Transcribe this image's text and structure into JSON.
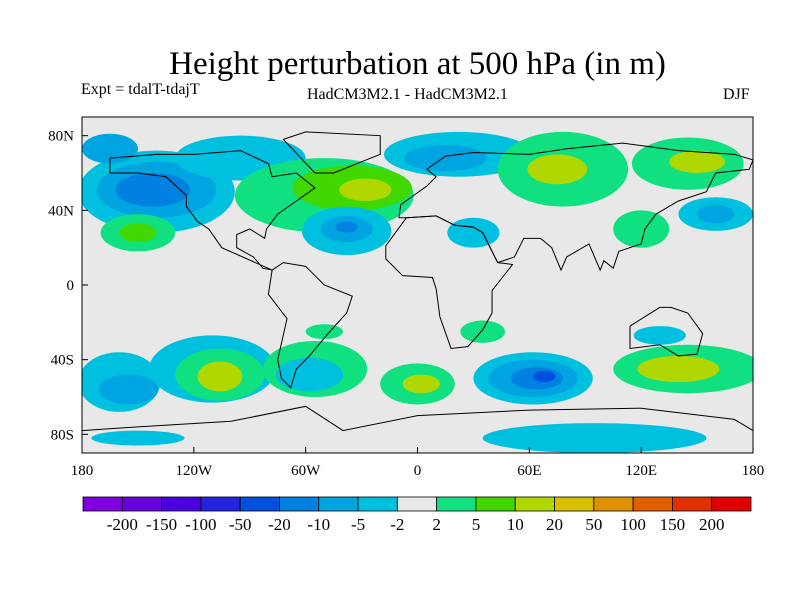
{
  "title": "Height perturbation at 500 hPa (in m)",
  "expt": "Expt = tdalT-tdajT",
  "models": "HadCM3M2.1 - HadCM3M2.1",
  "season": "DJF",
  "chart_data": {
    "type": "heatmap",
    "title": "Height perturbation at 500 hPa (in m)",
    "lon_range": [
      -180,
      180
    ],
    "lat_range": [
      -90,
      90
    ],
    "x_ticks": [
      {
        "v": -180,
        "label": "180"
      },
      {
        "v": -120,
        "label": "120W"
      },
      {
        "v": -60,
        "label": "60W"
      },
      {
        "v": 0,
        "label": "0"
      },
      {
        "v": 60,
        "label": "60E"
      },
      {
        "v": 120,
        "label": "120E"
      },
      {
        "v": 180,
        "label": "180"
      }
    ],
    "y_ticks": [
      {
        "v": 80,
        "label": "80N"
      },
      {
        "v": 40,
        "label": "40N"
      },
      {
        "v": 0,
        "label": "0"
      },
      {
        "v": -40,
        "label": "40S"
      },
      {
        "v": -80,
        "label": "80S"
      }
    ],
    "colorbar": {
      "labels": [
        "-200",
        "-150",
        "-100",
        "-50",
        "-20",
        "-10",
        "-5",
        "-2",
        "2",
        "5",
        "10",
        "20",
        "50",
        "100",
        "150",
        "200"
      ],
      "colors": [
        "#8000e0",
        "#6600dc",
        "#4c00e0",
        "#2424e0",
        "#0050e0",
        "#0080e0",
        "#00a4e0",
        "#00c0e0",
        "#e8e8e8",
        "#10e080",
        "#40d800",
        "#b0d800",
        "#d8c000",
        "#e09000",
        "#e06000",
        "#e03000",
        "#e00000"
      ]
    },
    "anomaly_regions": [
      {
        "lon": -140,
        "lat": 50,
        "rlon": 42,
        "rlat": 22,
        "bin": 7
      },
      {
        "lon": -140,
        "lat": 51,
        "rlon": 32,
        "rlat": 15,
        "bin": 6
      },
      {
        "lon": -142,
        "lat": 51,
        "rlon": 20,
        "rlat": 9,
        "bin": 5
      },
      {
        "lon": -165,
        "lat": 73,
        "rlon": 15,
        "rlat": 8,
        "bin": 6
      },
      {
        "lon": -95,
        "lat": 68,
        "rlon": 35,
        "rlat": 12,
        "bin": 7
      },
      {
        "lon": -50,
        "lat": 48,
        "rlon": 48,
        "rlat": 20,
        "bin": 9
      },
      {
        "lon": -35,
        "lat": 52,
        "rlon": 32,
        "rlat": 12,
        "bin": 10
      },
      {
        "lon": -28,
        "lat": 51,
        "rlon": 14,
        "rlat": 6,
        "bin": 11
      },
      {
        "lon": -38,
        "lat": 29,
        "rlon": 24,
        "rlat": 13,
        "bin": 7
      },
      {
        "lon": -38,
        "lat": 30,
        "rlon": 14,
        "rlat": 7,
        "bin": 6
      },
      {
        "lon": -38,
        "lat": 31,
        "rlon": 6,
        "rlat": 3,
        "bin": 5
      },
      {
        "lon": 22,
        "lat": 70,
        "rlon": 40,
        "rlat": 12,
        "bin": 7
      },
      {
        "lon": 15,
        "lat": 68,
        "rlon": 22,
        "rlat": 7,
        "bin": 6
      },
      {
        "lon": 78,
        "lat": 62,
        "rlon": 35,
        "rlat": 20,
        "bin": 9
      },
      {
        "lon": 75,
        "lat": 62,
        "rlon": 16,
        "rlat": 8,
        "bin": 11
      },
      {
        "lon": 145,
        "lat": 65,
        "rlon": 30,
        "rlat": 14,
        "bin": 9
      },
      {
        "lon": 150,
        "lat": 66,
        "rlon": 15,
        "rlat": 6,
        "bin": 11
      },
      {
        "lon": 160,
        "lat": 38,
        "rlon": 20,
        "rlat": 9,
        "bin": 7
      },
      {
        "lon": 160,
        "lat": 38,
        "rlon": 10,
        "rlat": 5,
        "bin": 6
      },
      {
        "lon": -150,
        "lat": 28,
        "rlon": 20,
        "rlat": 10,
        "bin": 9
      },
      {
        "lon": -150,
        "lat": 28,
        "rlon": 10,
        "rlat": 5,
        "bin": 10
      },
      {
        "lon": 120,
        "lat": 30,
        "rlon": 15,
        "rlat": 10,
        "bin": 9
      },
      {
        "lon": 30,
        "lat": 28,
        "rlon": 14,
        "rlat": 8,
        "bin": 7
      },
      {
        "lon": -110,
        "lat": -45,
        "rlon": 34,
        "rlat": 18,
        "bin": 7
      },
      {
        "lon": -106,
        "lat": -48,
        "rlon": 24,
        "rlat": 14,
        "bin": 9
      },
      {
        "lon": -106,
        "lat": -49,
        "rlon": 12,
        "rlat": 8,
        "bin": 11
      },
      {
        "lon": -160,
        "lat": -52,
        "rlon": 22,
        "rlat": 16,
        "bin": 7
      },
      {
        "lon": -155,
        "lat": -56,
        "rlon": 16,
        "rlat": 8,
        "bin": 6
      },
      {
        "lon": -55,
        "lat": -45,
        "rlon": 28,
        "rlat": 15,
        "bin": 9
      },
      {
        "lon": -58,
        "lat": -48,
        "rlon": 18,
        "rlat": 9,
        "bin": 7
      },
      {
        "lon": 0,
        "lat": -53,
        "rlon": 20,
        "rlat": 11,
        "bin": 9
      },
      {
        "lon": 2,
        "lat": -53,
        "rlon": 10,
        "rlat": 5,
        "bin": 11
      },
      {
        "lon": 62,
        "lat": -50,
        "rlon": 32,
        "rlat": 14,
        "bin": 7
      },
      {
        "lon": 62,
        "lat": -50,
        "rlon": 24,
        "rlat": 10,
        "bin": 6
      },
      {
        "lon": 64,
        "lat": -50,
        "rlon": 14,
        "rlat": 6,
        "bin": 5
      },
      {
        "lon": 68,
        "lat": -49,
        "rlon": 6,
        "rlat": 3,
        "bin": 4
      },
      {
        "lon": 145,
        "lat": -45,
        "rlon": 40,
        "rlat": 13,
        "bin": 9
      },
      {
        "lon": 140,
        "lat": -45,
        "rlon": 22,
        "rlat": 7,
        "bin": 11
      },
      {
        "lon": 130,
        "lat": -27,
        "rlon": 14,
        "rlat": 5,
        "bin": 7
      },
      {
        "lon": 95,
        "lat": -82,
        "rlon": 60,
        "rlat": 8,
        "bin": 7
      },
      {
        "lon": -150,
        "lat": -82,
        "rlon": 25,
        "rlat": 4,
        "bin": 7
      },
      {
        "lon": 35,
        "lat": -25,
        "rlon": 12,
        "rlat": 6,
        "bin": 9
      },
      {
        "lon": -50,
        "lat": -25,
        "rlon": 10,
        "rlat": 4,
        "bin": 9
      }
    ],
    "coastlines": [
      [
        [
          -165,
          68
        ],
        [
          -140,
          70
        ],
        [
          -120,
          70
        ],
        [
          -95,
          72
        ],
        [
          -80,
          65
        ],
        [
          -78,
          58
        ],
        [
          -65,
          60
        ],
        [
          -55,
          52
        ],
        [
          -65,
          45
        ],
        [
          -75,
          38
        ],
        [
          -81,
          30
        ],
        [
          -82,
          25
        ],
        [
          -90,
          30
        ],
        [
          -97,
          27
        ],
        [
          -97,
          20
        ],
        [
          -88,
          15
        ],
        [
          -83,
          9
        ],
        [
          -78,
          8
        ],
        [
          -105,
          20
        ],
        [
          -112,
          30
        ],
        [
          -118,
          34
        ],
        [
          -124,
          42
        ],
        [
          -124,
          48
        ],
        [
          -135,
          58
        ],
        [
          -150,
          60
        ],
        [
          -165,
          60
        ],
        [
          -165,
          68
        ]
      ],
      [
        [
          -78,
          8
        ],
        [
          -72,
          12
        ],
        [
          -60,
          10
        ],
        [
          -50,
          0
        ],
        [
          -35,
          -6
        ],
        [
          -38,
          -15
        ],
        [
          -48,
          -26
        ],
        [
          -58,
          -38
        ],
        [
          -65,
          -45
        ],
        [
          -68,
          -55
        ],
        [
          -73,
          -50
        ],
        [
          -75,
          -40
        ],
        [
          -70,
          -18
        ],
        [
          -80,
          -5
        ],
        [
          -78,
          8
        ]
      ],
      [
        [
          -55,
          60
        ],
        [
          -45,
          60
        ],
        [
          -20,
          70
        ],
        [
          -20,
          80
        ],
        [
          -60,
          82
        ],
        [
          -72,
          78
        ],
        [
          -55,
          60
        ]
      ],
      [
        [
          -10,
          36
        ],
        [
          -9,
          43
        ],
        [
          -2,
          48
        ],
        [
          5,
          53
        ],
        [
          10,
          58
        ],
        [
          5,
          62
        ],
        [
          15,
          69
        ],
        [
          30,
          71
        ],
        [
          60,
          70
        ],
        [
          80,
          73
        ],
        [
          110,
          76
        ],
        [
          140,
          72
        ],
        [
          170,
          70
        ],
        [
          180,
          67
        ],
        [
          178,
          62
        ],
        [
          160,
          60
        ],
        [
          155,
          50
        ],
        [
          140,
          45
        ],
        [
          128,
          38
        ],
        [
          122,
          30
        ],
        [
          120,
          22
        ],
        [
          108,
          18
        ],
        [
          105,
          9
        ],
        [
          100,
          13
        ],
        [
          98,
          8
        ],
        [
          92,
          22
        ],
        [
          80,
          15
        ],
        [
          77,
          8
        ],
        [
          72,
          20
        ],
        [
          66,
          25
        ],
        [
          57,
          25
        ],
        [
          52,
          15
        ],
        [
          43,
          12
        ],
        [
          35,
          28
        ],
        [
          30,
          31
        ],
        [
          20,
          32
        ],
        [
          10,
          37
        ],
        [
          -6,
          36
        ],
        [
          -10,
          36
        ]
      ],
      [
        [
          -17,
          21
        ],
        [
          -17,
          14
        ],
        [
          -8,
          5
        ],
        [
          8,
          4
        ],
        [
          10,
          -2
        ],
        [
          12,
          -17
        ],
        [
          18,
          -34
        ],
        [
          27,
          -33
        ],
        [
          35,
          -24
        ],
        [
          40,
          -15
        ],
        [
          40,
          -3
        ],
        [
          51,
          11
        ],
        [
          43,
          12
        ],
        [
          35,
          28
        ],
        [
          30,
          31
        ],
        [
          20,
          32
        ],
        [
          10,
          37
        ],
        [
          -6,
          36
        ],
        [
          -17,
          21
        ]
      ],
      [
        [
          114,
          -22
        ],
        [
          114,
          -34
        ],
        [
          130,
          -32
        ],
        [
          140,
          -38
        ],
        [
          150,
          -37
        ],
        [
          153,
          -26
        ],
        [
          145,
          -15
        ],
        [
          136,
          -12
        ],
        [
          130,
          -12
        ],
        [
          122,
          -17
        ],
        [
          114,
          -22
        ]
      ],
      [
        [
          -180,
          -78
        ],
        [
          -150,
          -76
        ],
        [
          -100,
          -73
        ],
        [
          -60,
          -65
        ],
        [
          -40,
          -78
        ],
        [
          0,
          -70
        ],
        [
          60,
          -67
        ],
        [
          120,
          -66
        ],
        [
          170,
          -72
        ],
        [
          180,
          -78
        ]
      ]
    ]
  }
}
